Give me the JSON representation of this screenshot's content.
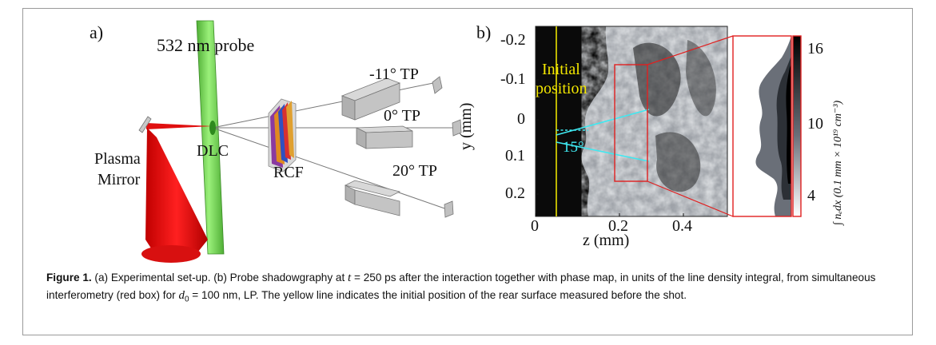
{
  "figure": {
    "panel_a": {
      "label": "a)",
      "probe_label": "532 nm probe",
      "tp_labels": [
        "-11° TP",
        "0° TP",
        "20° TP"
      ],
      "dlc_label": "DLC",
      "rcf_label": "RCF",
      "plasma_mirror_label": [
        "Plasma",
        "Mirror"
      ],
      "colors": {
        "probe_beam": "#7ed957",
        "laser": "#e01010",
        "hardware": "#b5b5b5"
      }
    },
    "panel_b": {
      "label": "b)",
      "initial_position_label": [
        "Initial",
        "position"
      ],
      "angle_label": "15°",
      "y_axis_label": "y (mm)",
      "x_axis_label": "z (mm)",
      "y_ticks": [
        "-0.2",
        "-0.1",
        "0",
        "0.1",
        "0.2"
      ],
      "x_ticks": [
        "0",
        "0.2",
        "0.4"
      ],
      "colorbar_ticks": [
        "16",
        "10",
        "4"
      ],
      "colorbar_label": "∫ nₑdx (0.1 mm × 10¹⁹ cm⁻³)",
      "colors": {
        "initial_line": "#e8e000",
        "cyan_lines": "#3fe8f0",
        "box": "#e02020"
      }
    }
  },
  "caption": {
    "prefix": "Figure 1.",
    "part1": " (a) Experimental set-up. (b) Probe shadowgraphy at ",
    "t_symbol": "t",
    "part2": " = 250 ps after the interaction together with phase map, in units of the line density integral, from simultaneous interferometry (red box) for ",
    "d_symbol": "d",
    "d_sub": "0",
    "part3": " = 100 nm, LP. The yellow line indicates the initial position of the rear surface measured before the shot."
  }
}
